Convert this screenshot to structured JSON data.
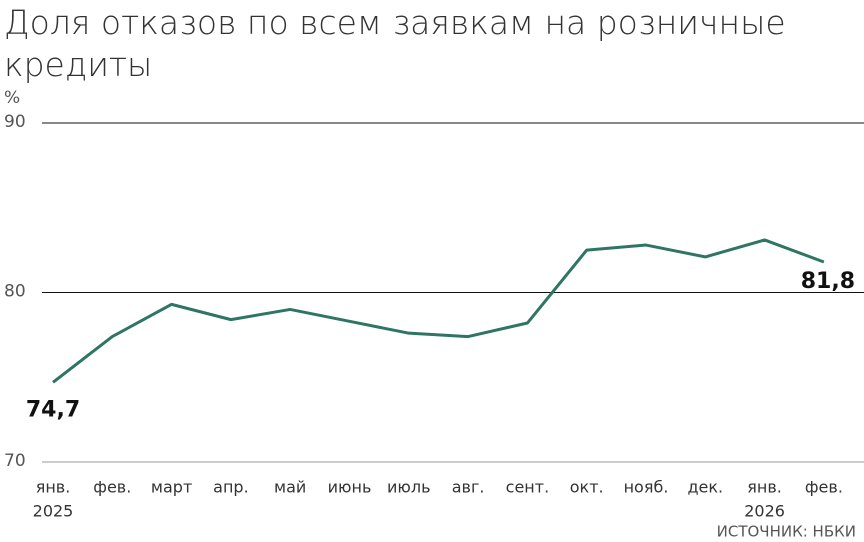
{
  "chart_data": {
    "type": "line",
    "title_lines": [
      "Доля отказов по всем заявкам на розничные",
      "кредиты"
    ],
    "y_label": "%",
    "source": "ИСТОЧНИК: НБКИ",
    "categories": [
      "янв.",
      "фев.",
      "март",
      "апр.",
      "май",
      "июнь",
      "июль",
      "авг.",
      "сент.",
      "окт.",
      "нояб.",
      "дек.",
      "янв.",
      "фев."
    ],
    "year_labels": [
      "2025",
      "2026"
    ],
    "series": [
      {
        "name": "Доля отказов",
        "color": "#2f7564",
        "values": [
          74.7,
          77.4,
          79.3,
          78.4,
          79.0,
          78.3,
          77.6,
          77.4,
          78.2,
          82.5,
          82.8,
          82.1,
          83.1,
          81.8
        ],
        "value_labels": [
          "74,7",
          null,
          null,
          null,
          null,
          null,
          null,
          null,
          null,
          null,
          null,
          null,
          null,
          "81,8"
        ]
      }
    ],
    "ylim": [
      70,
      90
    ],
    "yticks": [
      70,
      80,
      90
    ],
    "grid": true
  }
}
